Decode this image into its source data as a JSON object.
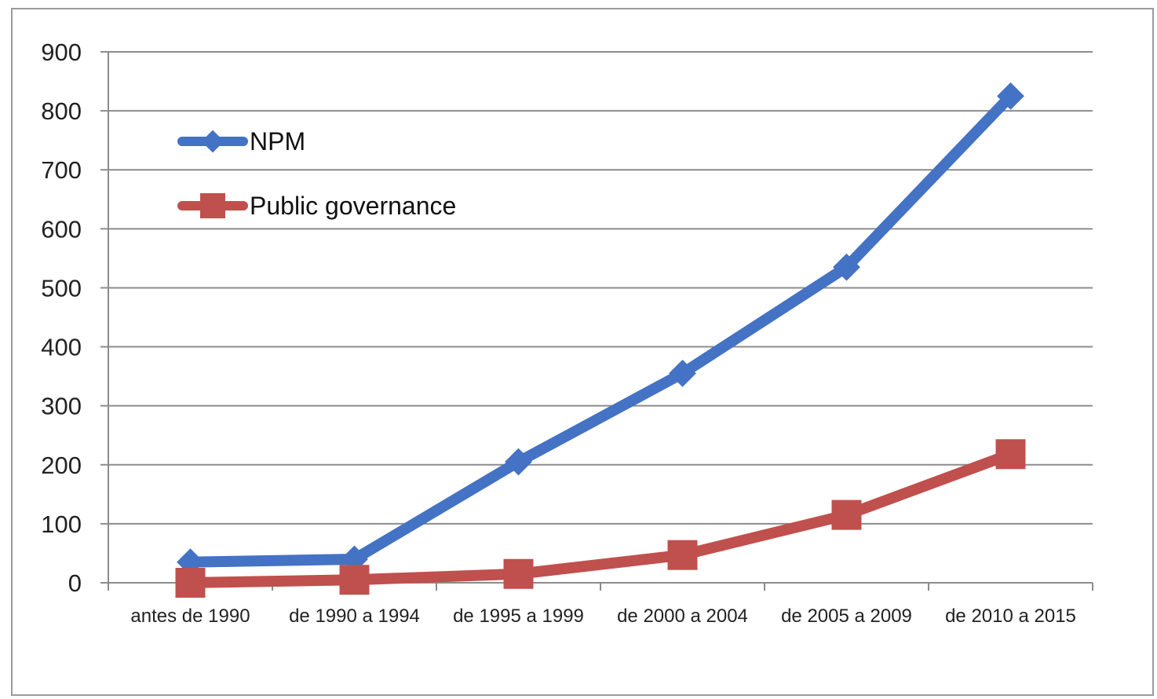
{
  "chart_data": {
    "type": "line",
    "categories": [
      "antes de 1990",
      "de 1990 a 1994",
      "de 1995 a 1999",
      "de 2000 a 2004",
      "de 2005 a 2009",
      "de 2010 a 2015"
    ],
    "series": [
      {
        "name": "NPM",
        "values": [
          35,
          40,
          205,
          355,
          535,
          825
        ],
        "color": "#4472c4",
        "marker": "diamond"
      },
      {
        "name": "Public governance",
        "values": [
          0,
          5,
          15,
          47,
          115,
          218
        ],
        "color": "#c0504d",
        "marker": "square"
      }
    ],
    "ylim": [
      0,
      900
    ],
    "yticks": [
      0,
      100,
      200,
      300,
      400,
      500,
      600,
      700,
      800,
      900
    ],
    "grid": true,
    "legend": "top-left"
  }
}
